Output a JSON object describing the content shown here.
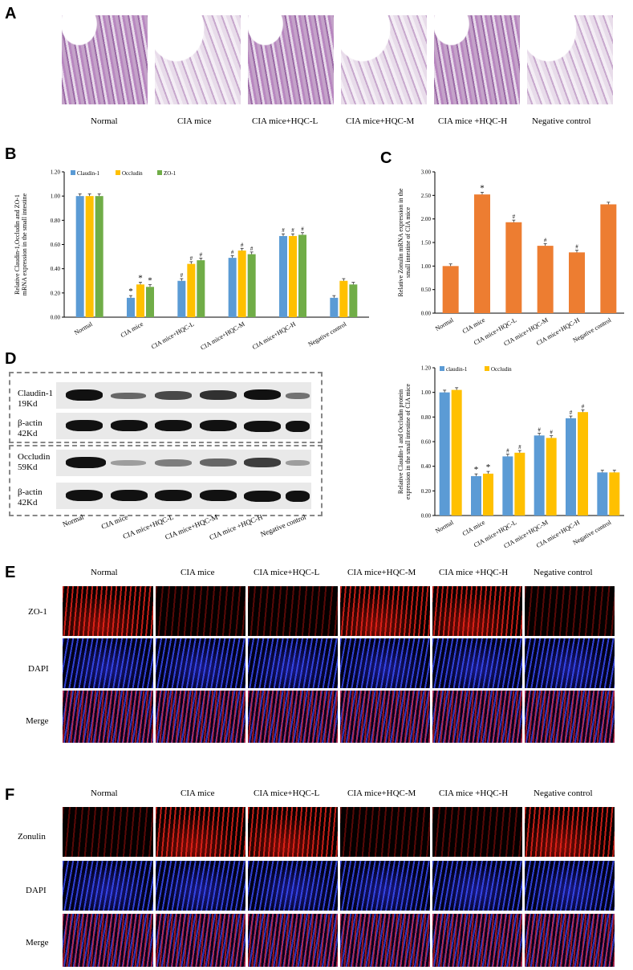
{
  "panels": {
    "A": "A",
    "B": "B",
    "C": "C",
    "D": "D",
    "E": "E",
    "F": "F"
  },
  "groups": [
    "Normal",
    "CIA mice",
    "CIA mice+HQC-L",
    "CIA mice+HQC-M",
    "CIA mice +HQC-H",
    "Negative control"
  ],
  "panel_a_labels": [
    "Normal",
    "CIA mice",
    "CIA mice+HQC-L",
    "CIA mice+HQC-M",
    "CIA mice +HQC-H",
    "Negative control"
  ],
  "panel_b_xlabels": [
    "Normal",
    "CIA mice",
    "CIA mice+HQC-L",
    "CIA mice+HQC-M",
    "CIA mice+HQC-H",
    "Negative control"
  ],
  "panel_c_xlabels": [
    "Normal",
    "CIA mice",
    "CIA mice+HQC-L",
    "CIA mice+HQC-M",
    "CIA mice+HQC-H",
    "Negative control"
  ],
  "panel_d_xlabels": [
    "Normal",
    "CIA mice",
    "CIA mice+HQC-L",
    "CIA mice+HQC-M",
    "CIA mice +HQC-H",
    "Negative control"
  ],
  "panel_e_labels": [
    "Normal",
    "CIA mice",
    "CIA mice+HQC-L",
    "CIA mice+HQC-M",
    "CIA mice +HQC-H",
    "Negative control"
  ],
  "panel_f_labels": [
    "Normal",
    "CIA mice",
    "CIA mice+HQC-L",
    "CIA mice+HQC-M",
    "CIA mice +HQC-H",
    "Negative control"
  ],
  "blot_labels": {
    "claudin": "Claudin-1",
    "claudin_kd": "19Kd",
    "actin1": "β-actin",
    "actin1_kd": "42Kd",
    "occludin": "Occludin",
    "occludin_kd": "59Kd",
    "actin2": "β-actin",
    "actin2_kd": "42Kd"
  },
  "row_labels_e": [
    "ZO-1",
    "DAPI",
    "Merge"
  ],
  "row_labels_f": [
    "Zonulin",
    "DAPI",
    "Merge"
  ],
  "colors": {
    "blue": "#5b9bd5",
    "yellow": "#ffc000",
    "green": "#70ad47",
    "orange": "#ed7d31"
  },
  "chart_data": [
    {
      "id": "B",
      "type": "bar",
      "ylabel": "Relative Claudin-1,Occludin and ZO-1 mRNA expression in the small intestine",
      "ylim": [
        0,
        1.2
      ],
      "yticks": [
        "0.00",
        "0.20",
        "0.40",
        "0.60",
        "0.80",
        "1.00",
        "1.20"
      ],
      "categories": [
        "Normal",
        "CIA mice",
        "CIA mice+HQC-L",
        "CIA mice+HQC-M",
        "CIA mice+HQC-H",
        "Negative control"
      ],
      "series": [
        {
          "name": "Claudin-1",
          "color": "#5b9bd5",
          "values": [
            1.0,
            0.16,
            0.3,
            0.49,
            0.67,
            0.16
          ],
          "marks": [
            "",
            "*",
            "#",
            "#",
            "#",
            ""
          ]
        },
        {
          "name": "Occludin",
          "color": "#ffc000",
          "values": [
            1.0,
            0.27,
            0.44,
            0.55,
            0.67,
            0.3
          ],
          "marks": [
            "",
            "*",
            "#",
            "#",
            "#",
            ""
          ]
        },
        {
          "name": "ZO-1",
          "color": "#70ad47",
          "values": [
            1.0,
            0.25,
            0.47,
            0.52,
            0.68,
            0.27
          ],
          "marks": [
            "",
            "*",
            "#",
            "#",
            "#",
            ""
          ]
        }
      ]
    },
    {
      "id": "C",
      "type": "bar",
      "ylabel": "Relative Zonulin mRNA expression in the small intestine of CIA mice",
      "ylim": [
        0,
        3.0
      ],
      "yticks": [
        "0.00",
        "0.50",
        "1.00",
        "1.50",
        "2.00",
        "2.50",
        "3.00"
      ],
      "categories": [
        "Normal",
        "CIA mice",
        "CIA mice+HQC-L",
        "CIA mice+HQC-M",
        "CIA mice+HQC-H",
        "Negative control"
      ],
      "series": [
        {
          "name": "Zonulin",
          "color": "#ed7d31",
          "values": [
            1.0,
            2.52,
            1.93,
            1.43,
            1.29,
            2.31
          ],
          "marks": [
            "",
            "*",
            "#",
            "#",
            "#",
            ""
          ]
        }
      ]
    },
    {
      "id": "D",
      "type": "bar",
      "ylabel": "Relative Claudin-1 and Occludin protein expression in the small intestine of CIA mice",
      "ylim": [
        0,
        1.2
      ],
      "yticks": [
        "0.00",
        "0.20",
        "0.40",
        "0.60",
        "0.80",
        "1.00",
        "1.20"
      ],
      "categories": [
        "Normal",
        "CIA mice",
        "CIA mice+HQC-L",
        "CIA mice+HQC-M",
        "CIA mice+HQC-H",
        "Negative control"
      ],
      "series": [
        {
          "name": "claudin-1",
          "color": "#5b9bd5",
          "values": [
            1.0,
            0.32,
            0.48,
            0.65,
            0.79,
            0.35
          ],
          "marks": [
            "",
            "*",
            "#",
            "#",
            "#",
            ""
          ]
        },
        {
          "name": "Occludin",
          "color": "#ffc000",
          "values": [
            1.02,
            0.34,
            0.51,
            0.63,
            0.84,
            0.35
          ],
          "marks": [
            "",
            "*",
            "#",
            "#",
            "#",
            ""
          ]
        }
      ]
    }
  ]
}
